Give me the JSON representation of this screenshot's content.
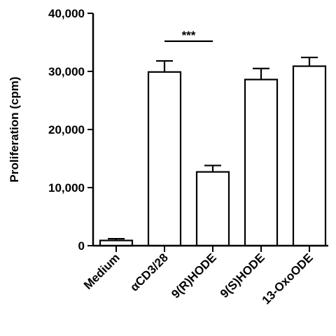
{
  "chart_data": {
    "type": "bar",
    "title": "",
    "xlabel": "",
    "ylabel": "Proliferation (cpm)",
    "ylim": [
      0,
      40000
    ],
    "yticks": [
      0,
      10000,
      20000,
      30000,
      40000
    ],
    "ytick_labels": [
      "0",
      "10,000",
      "20,000",
      "30,000",
      "40,000"
    ],
    "categories": [
      "Medium",
      "αCD3/28",
      "9(R)HODE",
      "9(S)HODE",
      "13-OxoODE"
    ],
    "values": [
      900,
      29900,
      12700,
      28600,
      30900
    ],
    "errors": [
      300,
      1900,
      1100,
      1900,
      1500
    ],
    "significance": {
      "label": "***",
      "between": [
        "αCD3/28",
        "9(R)HODE"
      ]
    },
    "grid": false,
    "legend": "none"
  }
}
